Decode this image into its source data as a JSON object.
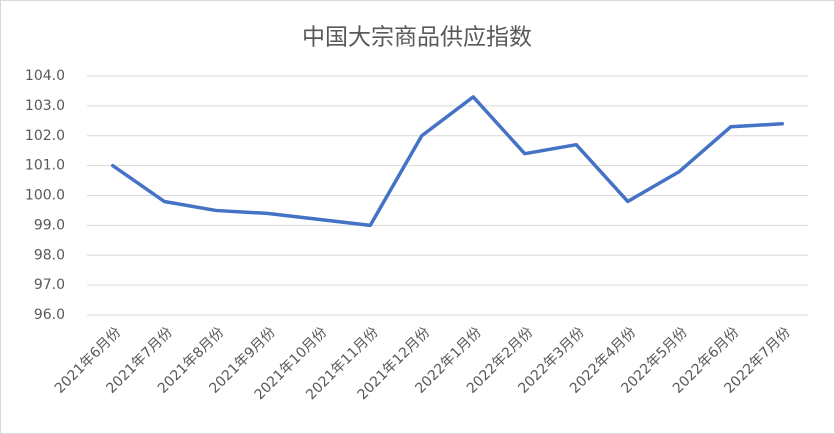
{
  "chart_data": {
    "type": "line",
    "title": "中国大宗商品供应指数",
    "categories": [
      "2021年6月份",
      "2021年7月份",
      "2021年8月份",
      "2021年9月份",
      "2021年10月份",
      "2021年11月份",
      "2021年12月份",
      "2022年1月份",
      "2022年2月份",
      "2022年3月份",
      "2022年4月份",
      "2022年5月份",
      "2022年6月份",
      "2022年7月份"
    ],
    "series": [
      {
        "name": "中国大宗商品供应指数",
        "color": "#4472c4",
        "values": [
          101.0,
          99.8,
          99.5,
          99.4,
          99.2,
          99.0,
          102.0,
          103.3,
          101.4,
          101.7,
          99.8,
          100.8,
          102.3,
          102.4
        ]
      }
    ],
    "ylim": [
      96,
      104
    ],
    "yticks": [
      {
        "value": 96,
        "label": "96.0"
      },
      {
        "value": 97,
        "label": "97.0"
      },
      {
        "value": 98,
        "label": "98.0"
      },
      {
        "value": 99,
        "label": "99.0"
      },
      {
        "value": 100,
        "label": "100.0"
      },
      {
        "value": 101,
        "label": "101.0"
      },
      {
        "value": 102,
        "label": "102.0"
      },
      {
        "value": 103,
        "label": "103.0"
      },
      {
        "value": 104,
        "label": "104.0"
      }
    ],
    "grid": true
  }
}
